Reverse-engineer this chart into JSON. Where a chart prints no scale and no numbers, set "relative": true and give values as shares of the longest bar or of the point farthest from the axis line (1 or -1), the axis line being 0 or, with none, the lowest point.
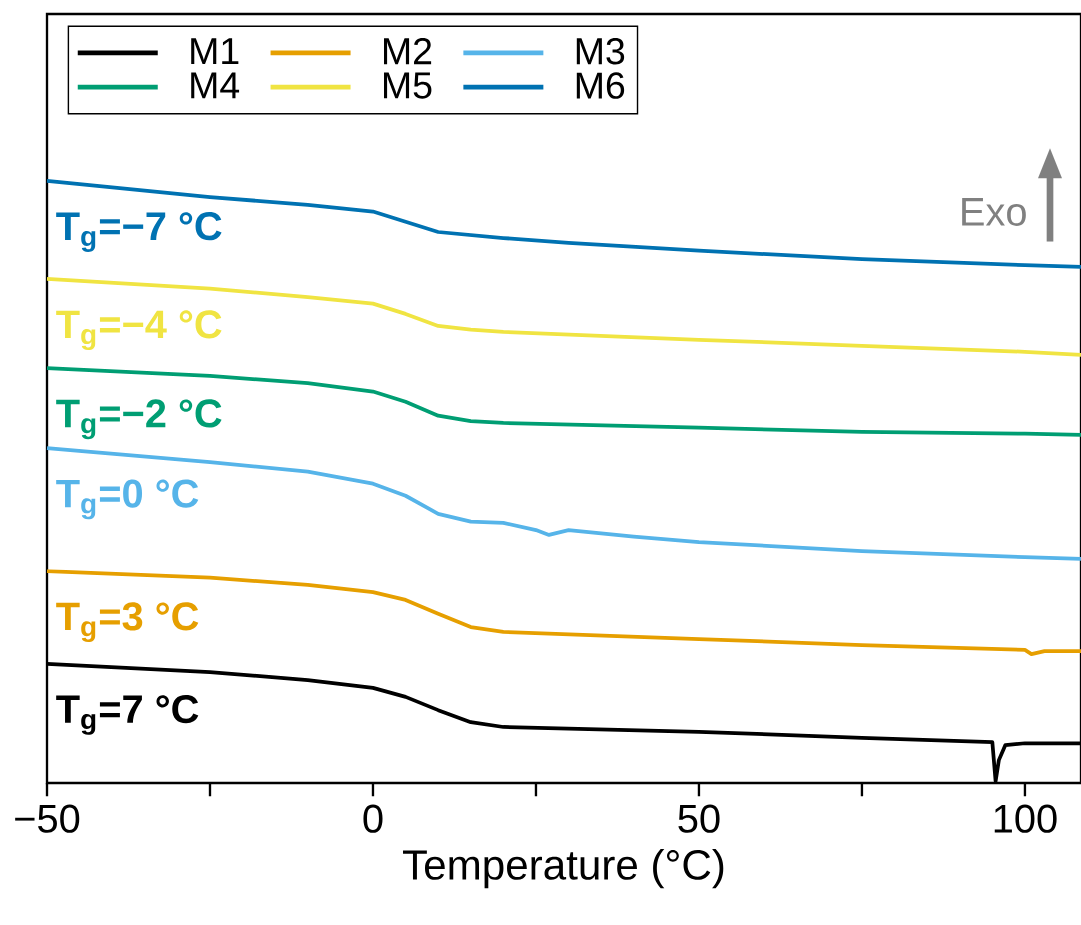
{
  "chart_data": {
    "type": "line",
    "relative": true,
    "xlabel": "Temperature (°C)",
    "xlim": [
      -50,
      108.6
    ],
    "xticks": [
      {
        "value": -50,
        "label": "−50"
      },
      {
        "value": -25,
        "label": null
      },
      0,
      {
        "value": 25,
        "label": null
      },
      50,
      {
        "value": 75,
        "label": null
      },
      100
    ],
    "legend": "top left",
    "grid": false,
    "marker": "none",
    "line_style": "solid",
    "series": [
      {
        "name": "M1",
        "color": "#000000",
        "x": [
          -50,
          -25,
          -10,
          0,
          5,
          10,
          15,
          20,
          50,
          75,
          95,
          95.5,
          96,
          97,
          100,
          108.6
        ],
        "values": [
          0.198,
          0.184,
          0.171,
          0.158,
          0.143,
          0.121,
          0.101,
          0.093,
          0.085,
          0.075,
          0.068,
          0.003,
          0.038,
          0.063,
          0.066,
          0.066
        ]
      },
      {
        "name": "M2",
        "color": "#e69f00",
        "x": [
          -50,
          -25,
          -10,
          0,
          5,
          10,
          15,
          20,
          50,
          75,
          100,
          101,
          103,
          108.6
        ],
        "values": [
          0.352,
          0.341,
          0.329,
          0.317,
          0.304,
          0.281,
          0.259,
          0.251,
          0.239,
          0.229,
          0.221,
          0.214,
          0.219,
          0.219
        ]
      },
      {
        "name": "M3",
        "color": "#56b4e9",
        "x": [
          -50,
          -25,
          -10,
          0,
          5,
          10,
          15,
          20,
          25,
          27,
          30,
          40,
          50,
          75,
          100,
          108.6
        ],
        "values": [
          0.556,
          0.533,
          0.517,
          0.497,
          0.477,
          0.447,
          0.434,
          0.432,
          0.42,
          0.412,
          0.42,
          0.409,
          0.4,
          0.385,
          0.375,
          0.372
        ]
      },
      {
        "name": "M4",
        "color": "#009e73",
        "x": [
          -50,
          -25,
          -10,
          0,
          5,
          10,
          15,
          20,
          50,
          75,
          100,
          108.6
        ],
        "values": [
          0.689,
          0.676,
          0.664,
          0.65,
          0.633,
          0.61,
          0.601,
          0.598,
          0.59,
          0.583,
          0.58,
          0.578
        ]
      },
      {
        "name": "M5",
        "color": "#f0e442",
        "x": [
          -50,
          -25,
          -10,
          0,
          5,
          10,
          15,
          20,
          50,
          75,
          100,
          108.6
        ],
        "values": [
          0.837,
          0.821,
          0.807,
          0.796,
          0.779,
          0.759,
          0.753,
          0.749,
          0.736,
          0.726,
          0.716,
          0.711
        ]
      },
      {
        "name": "M6",
        "color": "#0072b2",
        "x": [
          -50,
          -25,
          -10,
          0,
          5,
          10,
          20,
          30,
          50,
          75,
          100,
          108.6
        ],
        "values": [
          1.0,
          0.973,
          0.96,
          0.949,
          0.932,
          0.915,
          0.905,
          0.897,
          0.884,
          0.87,
          0.86,
          0.857
        ]
      }
    ],
    "annotations": [
      "T$_{g}$=−7 °C",
      "T$_{g}$=−4 °C",
      "T$_{g}$=−2 °C",
      "T$_{g}$=0 °C",
      "T$_{g}$=3 °C",
      "T$_{g}$=7 °C",
      "Exo"
    ]
  }
}
